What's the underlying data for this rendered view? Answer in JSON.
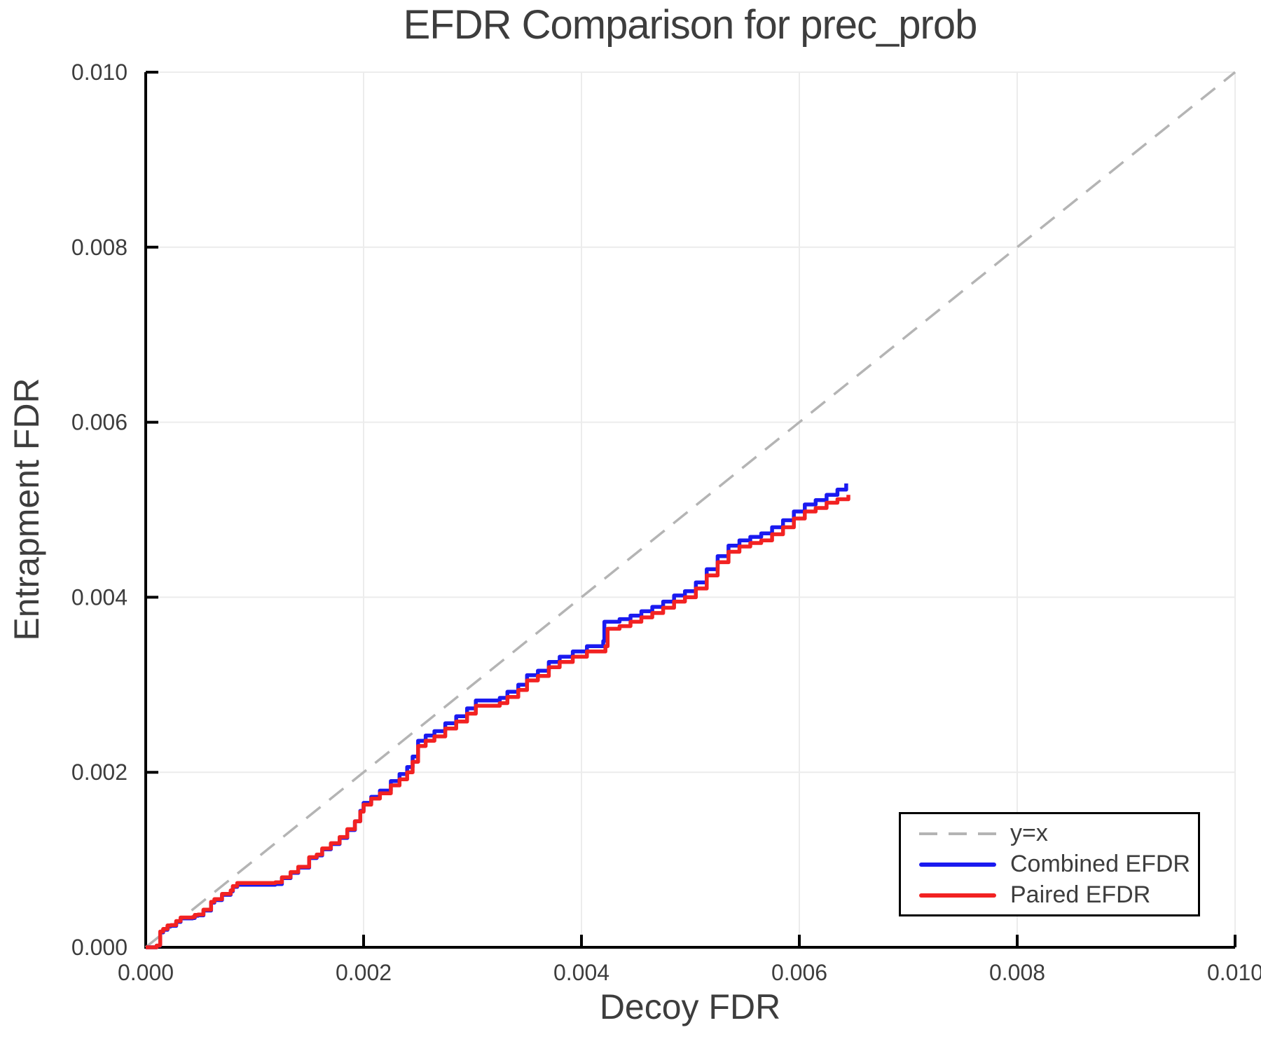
{
  "chart_data": {
    "type": "line",
    "title": "EFDR Comparison for prec_prob",
    "xlabel": "Decoy FDR",
    "ylabel": "Entrapment FDR",
    "xlim": [
      0,
      0.01
    ],
    "ylim": [
      0,
      0.01
    ],
    "grid": true,
    "legend_position": "lower right",
    "x_ticks": {
      "values": [
        0,
        0.002,
        0.004,
        0.006,
        0.008,
        0.01
      ],
      "labels": [
        "0.000",
        "0.002",
        "0.004",
        "0.006",
        "0.008",
        "0.010"
      ]
    },
    "y_ticks": {
      "values": [
        0,
        0.002,
        0.004,
        0.006,
        0.008,
        0.01
      ],
      "labels": [
        "0.000",
        "0.002",
        "0.004",
        "0.006",
        "0.008",
        "0.010"
      ]
    },
    "colors": {
      "grid": "#ececec",
      "spine": "#000000",
      "text": "#3d3d3d",
      "background": "#ffffff"
    },
    "series": [
      {
        "name": "y=x",
        "color": "#b4b4b4",
        "style": "dashed",
        "width": 3.5,
        "interpolation": "linear",
        "points": [
          [
            0,
            0
          ],
          [
            0.01,
            0.01
          ]
        ]
      },
      {
        "name": "Combined EFDR",
        "color": "#1a1af0",
        "style": "solid",
        "width": 5.5,
        "interpolation": "step",
        "points": [
          [
            0.0,
            0.0
          ],
          [
            0.0001,
            1.8e-05
          ],
          [
            0.00013,
            2.8e-05
          ],
          [
            0.000133,
            0.00017
          ],
          [
            0.00016,
            0.0002
          ],
          [
            0.0002,
            0.00024
          ],
          [
            0.00023,
            0.000245
          ],
          [
            0.00028,
            0.00029
          ],
          [
            0.00032,
            0.00033
          ],
          [
            0.00043,
            0.000335
          ],
          [
            0.00045,
            0.00036
          ],
          [
            0.00048,
            0.000365
          ],
          [
            0.00053,
            0.00042
          ],
          [
            0.0006,
            0.00051
          ],
          [
            0.00063,
            0.00054
          ],
          [
            0.0007,
            0.0006
          ],
          [
            0.00078,
            0.00064
          ],
          [
            0.0008,
            0.00069
          ],
          [
            0.00084,
            0.000715
          ],
          [
            0.00119,
            0.000722
          ],
          [
            0.00125,
            0.00079
          ],
          [
            0.00133,
            0.00085
          ],
          [
            0.0014,
            0.00091
          ],
          [
            0.0015,
            0.00102
          ],
          [
            0.00157,
            0.00105
          ],
          [
            0.00162,
            0.00112
          ],
          [
            0.0017,
            0.00118
          ],
          [
            0.00178,
            0.00125
          ],
          [
            0.00185,
            0.00134
          ],
          [
            0.00192,
            0.00144
          ],
          [
            0.00197,
            0.00156
          ],
          [
            0.002,
            0.00165
          ],
          [
            0.00207,
            0.00172
          ],
          [
            0.00215,
            0.00179
          ],
          [
            0.00225,
            0.0019
          ],
          [
            0.00233,
            0.00198
          ],
          [
            0.0024,
            0.00206
          ],
          [
            0.00245,
            0.00218
          ],
          [
            0.0025,
            0.00236
          ],
          [
            0.00257,
            0.00242
          ],
          [
            0.00265,
            0.00247
          ],
          [
            0.00275,
            0.00256
          ],
          [
            0.00285,
            0.00264
          ],
          [
            0.00295,
            0.00273
          ],
          [
            0.00303,
            0.00282
          ],
          [
            0.00325,
            0.00285
          ],
          [
            0.00332,
            0.00292
          ],
          [
            0.00342,
            0.003
          ],
          [
            0.0035,
            0.00311
          ],
          [
            0.0036,
            0.00316
          ],
          [
            0.0037,
            0.00326
          ],
          [
            0.0038,
            0.00332
          ],
          [
            0.00392,
            0.00338
          ],
          [
            0.00405,
            0.00344
          ],
          [
            0.0042,
            0.0035
          ],
          [
            0.00421,
            0.00372
          ],
          [
            0.00435,
            0.00375
          ],
          [
            0.00445,
            0.00379
          ],
          [
            0.00455,
            0.00384
          ],
          [
            0.00465,
            0.00389
          ],
          [
            0.00475,
            0.00395
          ],
          [
            0.00485,
            0.00402
          ],
          [
            0.00495,
            0.00407
          ],
          [
            0.00505,
            0.00417
          ],
          [
            0.00515,
            0.00432
          ],
          [
            0.00525,
            0.00447
          ],
          [
            0.00535,
            0.00459
          ],
          [
            0.00545,
            0.00465
          ],
          [
            0.00555,
            0.00469
          ],
          [
            0.00565,
            0.00473
          ],
          [
            0.00575,
            0.0048
          ],
          [
            0.00585,
            0.00488
          ],
          [
            0.00595,
            0.00498
          ],
          [
            0.00605,
            0.00506
          ],
          [
            0.00615,
            0.00511
          ],
          [
            0.00625,
            0.00517
          ],
          [
            0.00635,
            0.00523
          ],
          [
            0.00643,
            0.0053
          ]
        ]
      },
      {
        "name": "Paired EFDR",
        "color": "#f22222",
        "style": "solid",
        "width": 5.5,
        "interpolation": "step",
        "points": [
          [
            0.0,
            0.0
          ],
          [
            0.0001,
            2e-05
          ],
          [
            0.00013,
            3e-05
          ],
          [
            0.000133,
            0.00018
          ],
          [
            0.00016,
            0.00021
          ],
          [
            0.0002,
            0.00025
          ],
          [
            0.00023,
            0.000255
          ],
          [
            0.00028,
            0.0003
          ],
          [
            0.00032,
            0.00034
          ],
          [
            0.00043,
            0.000345
          ],
          [
            0.00045,
            0.00037
          ],
          [
            0.00048,
            0.000375
          ],
          [
            0.00053,
            0.00043
          ],
          [
            0.0006,
            0.00052
          ],
          [
            0.00063,
            0.00055
          ],
          [
            0.0007,
            0.00061
          ],
          [
            0.00078,
            0.00065
          ],
          [
            0.0008,
            0.0007
          ],
          [
            0.00084,
            0.000735
          ],
          [
            0.00119,
            0.000742
          ],
          [
            0.00125,
            0.0008
          ],
          [
            0.00133,
            0.00086
          ],
          [
            0.0014,
            0.00092
          ],
          [
            0.0015,
            0.00103
          ],
          [
            0.00157,
            0.00106
          ],
          [
            0.00162,
            0.00113
          ],
          [
            0.0017,
            0.00119
          ],
          [
            0.00178,
            0.00126
          ],
          [
            0.00185,
            0.00135
          ],
          [
            0.00192,
            0.00144
          ],
          [
            0.00197,
            0.00155
          ],
          [
            0.002,
            0.00163
          ],
          [
            0.00207,
            0.0017
          ],
          [
            0.00215,
            0.00176
          ],
          [
            0.00225,
            0.00185
          ],
          [
            0.00233,
            0.00192
          ],
          [
            0.0024,
            0.002
          ],
          [
            0.00245,
            0.00212
          ],
          [
            0.0025,
            0.0023
          ],
          [
            0.00257,
            0.00236
          ],
          [
            0.00265,
            0.00241
          ],
          [
            0.00275,
            0.0025
          ],
          [
            0.00285,
            0.00258
          ],
          [
            0.00295,
            0.00267
          ],
          [
            0.00303,
            0.00276
          ],
          [
            0.00325,
            0.00279
          ],
          [
            0.00332,
            0.00286
          ],
          [
            0.00342,
            0.00294
          ],
          [
            0.0035,
            0.00305
          ],
          [
            0.0036,
            0.0031
          ],
          [
            0.0037,
            0.0032
          ],
          [
            0.0038,
            0.00326
          ],
          [
            0.00392,
            0.00332
          ],
          [
            0.00405,
            0.00338
          ],
          [
            0.00422,
            0.00344
          ],
          [
            0.00424,
            0.00364
          ],
          [
            0.00435,
            0.00367
          ],
          [
            0.00445,
            0.00372
          ],
          [
            0.00455,
            0.00377
          ],
          [
            0.00465,
            0.00382
          ],
          [
            0.00475,
            0.00388
          ],
          [
            0.00485,
            0.00395
          ],
          [
            0.00495,
            0.004
          ],
          [
            0.00505,
            0.0041
          ],
          [
            0.00515,
            0.00425
          ],
          [
            0.00525,
            0.0044
          ],
          [
            0.00535,
            0.00452
          ],
          [
            0.00545,
            0.00458
          ],
          [
            0.00555,
            0.00462
          ],
          [
            0.00565,
            0.00465
          ],
          [
            0.00575,
            0.00472
          ],
          [
            0.00585,
            0.0048
          ],
          [
            0.00595,
            0.0049
          ],
          [
            0.00605,
            0.00498
          ],
          [
            0.00615,
            0.00502
          ],
          [
            0.00625,
            0.00508
          ],
          [
            0.00635,
            0.00512
          ],
          [
            0.00645,
            0.00517
          ]
        ]
      }
    ]
  }
}
